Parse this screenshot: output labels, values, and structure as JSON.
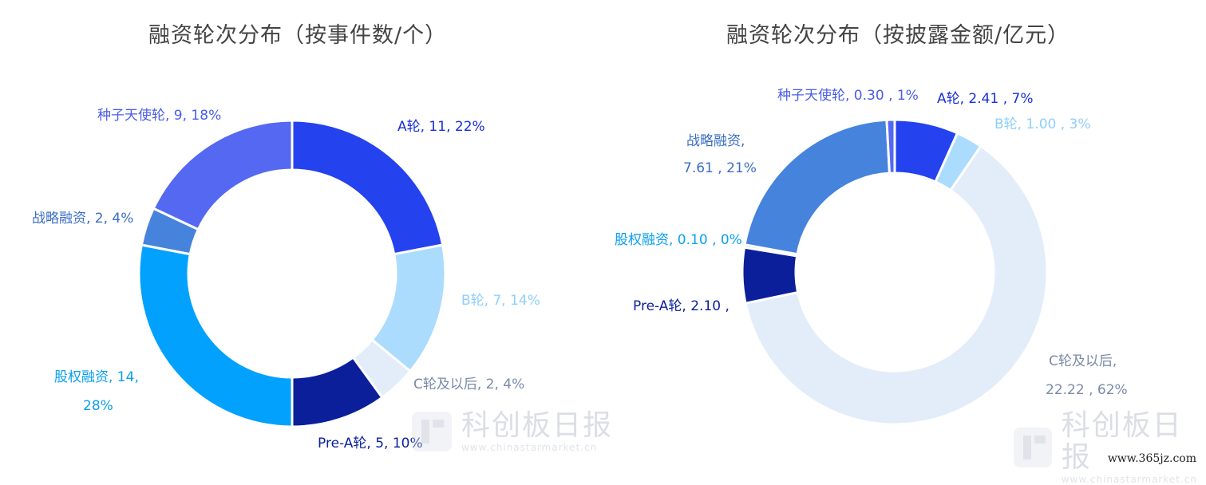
{
  "chart_data": [
    {
      "type": "pie",
      "title": "融资轮次分布（按事件数/个）",
      "donut": true,
      "slices": [
        {
          "name": "A轮",
          "value": 11,
          "percent": "22%",
          "label": "A轮, 11, 22%",
          "color": "#2442ee"
        },
        {
          "name": "B轮",
          "value": 7,
          "percent": "14%",
          "label": "B轮, 7, 14%",
          "color": "#abdcfd"
        },
        {
          "name": "C轮及以后",
          "value": 2,
          "percent": "4%",
          "label": "C轮及以后, 2, 4%",
          "color": "#e3edfa"
        },
        {
          "name": "Pre-A轮",
          "value": 5,
          "percent": "10%",
          "label": "Pre-A轮, 5, 10%",
          "color": "#0b1f9a"
        },
        {
          "name": "股权融资",
          "value": 14,
          "percent": "28%",
          "label": "股权融资, 14,",
          "label2": "28%",
          "color": "#03a1fe"
        },
        {
          "name": "战略融资",
          "value": 2,
          "percent": "4%",
          "label": "战略融资, 2, 4%",
          "color": "#4583dc"
        },
        {
          "name": "种子天使轮",
          "value": 9,
          "percent": "18%",
          "label": "种子天使轮, 9, 18%",
          "color": "#5468f2"
        }
      ]
    },
    {
      "type": "pie",
      "title": "融资轮次分布（按披露金额/亿元）",
      "donut": true,
      "slices": [
        {
          "name": "A轮",
          "value": 2.41,
          "percent": "7%",
          "label": "A轮, 2.41 , 7%",
          "color": "#2442ee"
        },
        {
          "name": "B轮",
          "value": 1.0,
          "percent": "3%",
          "label": "B轮, 1.00 , 3%",
          "color": "#abdcfd"
        },
        {
          "name": "C轮及以后",
          "value": 22.22,
          "percent": "62%",
          "label": "C轮及以后,",
          "label2": "22.22 , 62%",
          "color": "#e3edfa"
        },
        {
          "name": "Pre-A轮",
          "value": 2.1,
          "percent": "",
          "label": "Pre-A轮, 2.10 ,",
          "color": "#0b1f9a"
        },
        {
          "name": "股权融资",
          "value": 0.1,
          "percent": "0%",
          "label": "股权融资, 0.10 , 0%",
          "color": "#03a1fe"
        },
        {
          "name": "战略融资",
          "value": 7.61,
          "percent": "21%",
          "label": "战略融资,",
          "label2": "7.61 , 21%",
          "color": "#4583dc"
        },
        {
          "name": "种子天使轮",
          "value": 0.3,
          "percent": "1%",
          "label": "种子天使轮, 0.30 , 1%",
          "color": "#5468f2"
        }
      ]
    }
  ],
  "watermark": {
    "brand": "科创板日报",
    "url": "www.chinastarmarket.cn"
  },
  "footer": {
    "site": "www.365jz.com"
  }
}
